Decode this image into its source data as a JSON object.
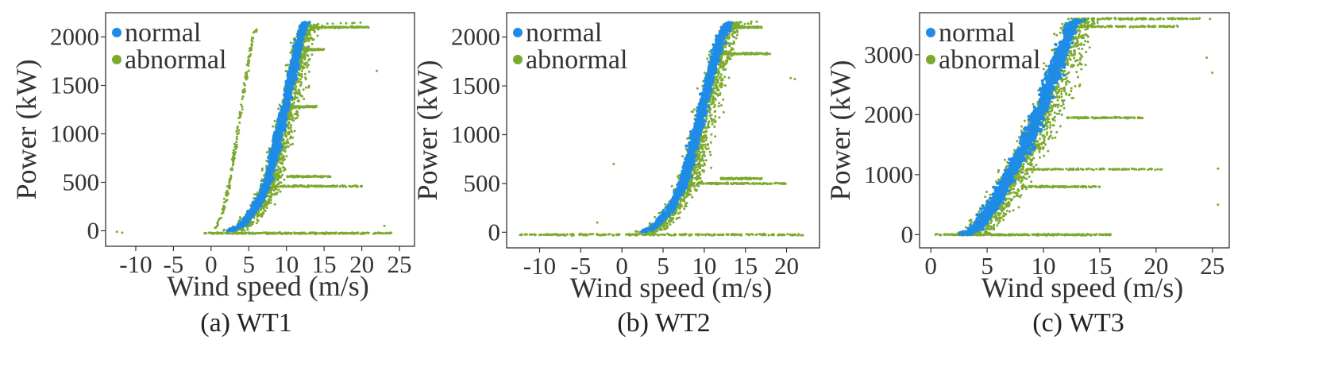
{
  "colors": {
    "normal": "#1e8ce6",
    "abnormal": "#7caa2e"
  },
  "chart_data": [
    {
      "type": "scatter",
      "caption": "(a) WT1",
      "xlabel": "Wind speed (m/s)",
      "ylabel": "Power (kW)",
      "xlim": [
        -14,
        27
      ],
      "ylim": [
        -160,
        2250
      ],
      "xticks": [
        -10,
        -5,
        0,
        5,
        10,
        15,
        20,
        25
      ],
      "xtick_labels": [
        "-10",
        "-5",
        "0",
        "5",
        "10",
        "15",
        "20",
        "25"
      ],
      "yticks": [
        0,
        500,
        1000,
        1500,
        2000
      ],
      "ytick_labels": [
        "0",
        "500",
        "1000",
        "1500",
        "2000"
      ],
      "legend": {
        "position": "top-left",
        "entries": [
          "normal",
          "abnormal"
        ]
      },
      "series": [
        {
          "name": "normal",
          "color": "#1e8ce6",
          "curve": [
            [
              2.5,
              0
            ],
            [
              4,
              50
            ],
            [
              6,
              250
            ],
            [
              7.5,
              500
            ],
            [
              9,
              1000
            ],
            [
              10.5,
              1500
            ],
            [
              11.8,
              2000
            ],
            [
              12.5,
              2150
            ]
          ],
          "spread": 0.9
        },
        {
          "name": "abnormal",
          "color": "#7caa2e",
          "curve": [
            [
              2.5,
              0
            ],
            [
              4,
              60
            ],
            [
              6,
              250
            ],
            [
              7.5,
              500
            ],
            [
              9,
              1000
            ],
            [
              10.5,
              1500
            ],
            [
              11.8,
              2000
            ],
            [
              13,
              2130
            ],
            [
              20,
              2150
            ]
          ],
          "spread": 3.0,
          "stopped": {
            "x": [
              -1,
              24
            ],
            "y": -25
          },
          "bands": [
            {
              "y": 460,
              "x": [
                8,
                20
              ]
            },
            {
              "y": 560,
              "x": [
                10,
                16
              ]
            },
            {
              "y": 1280,
              "x": [
                10,
                14
              ]
            },
            {
              "y": 1870,
              "x": [
                11,
                15
              ]
            },
            {
              "y": 2100,
              "x": [
                12,
                21
              ]
            }
          ],
          "shifted": [
            [
              0.5,
              0
            ],
            [
              1.5,
              200
            ],
            [
              2.5,
              500
            ],
            [
              3.5,
              1000
            ],
            [
              4.5,
              1500
            ],
            [
              5.5,
              2000
            ],
            [
              6.2,
              2100
            ]
          ],
          "outliers": [
            [
              -12.5,
              -10
            ],
            [
              -11.8,
              -20
            ],
            [
              22,
              1650
            ],
            [
              23,
              50
            ]
          ]
        }
      ]
    },
    {
      "type": "scatter",
      "caption": "(b) WT2",
      "xlabel": "Wind speed (m/s)",
      "ylabel": "Power (kW)",
      "xlim": [
        -14,
        24
      ],
      "ylim": [
        -160,
        2250
      ],
      "xticks": [
        -10,
        -5,
        0,
        5,
        10,
        15,
        20
      ],
      "xtick_labels": [
        "-10",
        "-5",
        "0",
        "5",
        "10",
        "15",
        "20"
      ],
      "yticks": [
        0,
        500,
        1000,
        1500,
        2000
      ],
      "ytick_labels": [
        "0",
        "500",
        "1000",
        "1500",
        "2000"
      ],
      "legend": {
        "position": "top-left",
        "entries": [
          "normal",
          "abnormal"
        ]
      },
      "series": [
        {
          "name": "normal",
          "color": "#1e8ce6",
          "curve": [
            [
              2.5,
              0
            ],
            [
              4,
              60
            ],
            [
              6,
              250
            ],
            [
              7.5,
              500
            ],
            [
              9,
              1000
            ],
            [
              10.5,
              1500
            ],
            [
              12,
              2000
            ],
            [
              13,
              2150
            ]
          ],
          "spread": 0.9
        },
        {
          "name": "abnormal",
          "color": "#7caa2e",
          "curve": [
            [
              2.5,
              0
            ],
            [
              4,
              60
            ],
            [
              6,
              250
            ],
            [
              7.5,
              500
            ],
            [
              9,
              1000
            ],
            [
              10.5,
              1500
            ],
            [
              12,
              2000
            ],
            [
              13.5,
              2150
            ],
            [
              16,
              2160
            ]
          ],
          "spread": 3.2,
          "stopped": {
            "x": [
              -12.5,
              22
            ],
            "y": -25
          },
          "bands": [
            {
              "y": 500,
              "x": [
                9,
                20
              ]
            },
            {
              "y": 550,
              "x": [
                12,
                17
              ]
            },
            {
              "y": 1830,
              "x": [
                12,
                18
              ]
            },
            {
              "y": 2100,
              "x": [
                12,
                17
              ]
            }
          ],
          "shifted": [],
          "outliers": [
            [
              -3,
              100
            ],
            [
              -1,
              700
            ],
            [
              21,
              1570
            ],
            [
              20.5,
              1580
            ]
          ]
        }
      ]
    },
    {
      "type": "scatter",
      "caption": "(c) WT3",
      "xlabel": "Wind speed (m/s)",
      "ylabel": "Power (kW)",
      "xlim": [
        -1,
        26.5
      ],
      "ylim": [
        -220,
        3700
      ],
      "xticks": [
        0,
        5,
        10,
        15,
        20,
        25
      ],
      "xtick_labels": [
        "0",
        "5",
        "10",
        "15",
        "20",
        "25"
      ],
      "yticks": [
        0,
        1000,
        2000,
        3000
      ],
      "ytick_labels": [
        "0",
        "1000",
        "2000",
        "3000"
      ],
      "legend": {
        "position": "top-left",
        "entries": [
          "normal",
          "abnormal"
        ]
      },
      "series": [
        {
          "name": "normal",
          "color": "#1e8ce6",
          "curve": [
            [
              3,
              0
            ],
            [
              4,
              100
            ],
            [
              5.5,
              500
            ],
            [
              7,
              1000
            ],
            [
              8.5,
              1500
            ],
            [
              10,
              2200
            ],
            [
              11.5,
              3000
            ],
            [
              12.5,
              3500
            ],
            [
              13,
              3580
            ]
          ],
          "spread": 1.1
        },
        {
          "name": "abnormal",
          "color": "#7caa2e",
          "curve": [
            [
              2.5,
              0
            ],
            [
              4,
              100
            ],
            [
              5.5,
              500
            ],
            [
              7,
              1000
            ],
            [
              8.5,
              1500
            ],
            [
              10,
              2200
            ],
            [
              11.5,
              3000
            ],
            [
              12.5,
              3500
            ],
            [
              14,
              3580
            ],
            [
              24,
              3600
            ]
          ],
          "spread": 3.2,
          "stopped": {
            "x": [
              0,
              16
            ],
            "y": 0
          },
          "bands": [
            {
              "y": 1090,
              "x": [
                8,
                20.5
              ]
            },
            {
              "y": 800,
              "x": [
                8,
                15
              ]
            },
            {
              "y": 1950,
              "x": [
                12,
                19
              ]
            },
            {
              "y": 3470,
              "x": [
                12.5,
                22
              ]
            },
            {
              "y": 3600,
              "x": [
                12,
                24
              ]
            }
          ],
          "shifted": [],
          "outliers": [
            [
              25.5,
              500
            ],
            [
              24.5,
              2950
            ],
            [
              25,
              2700
            ],
            [
              25.5,
              1100
            ]
          ]
        }
      ]
    }
  ]
}
